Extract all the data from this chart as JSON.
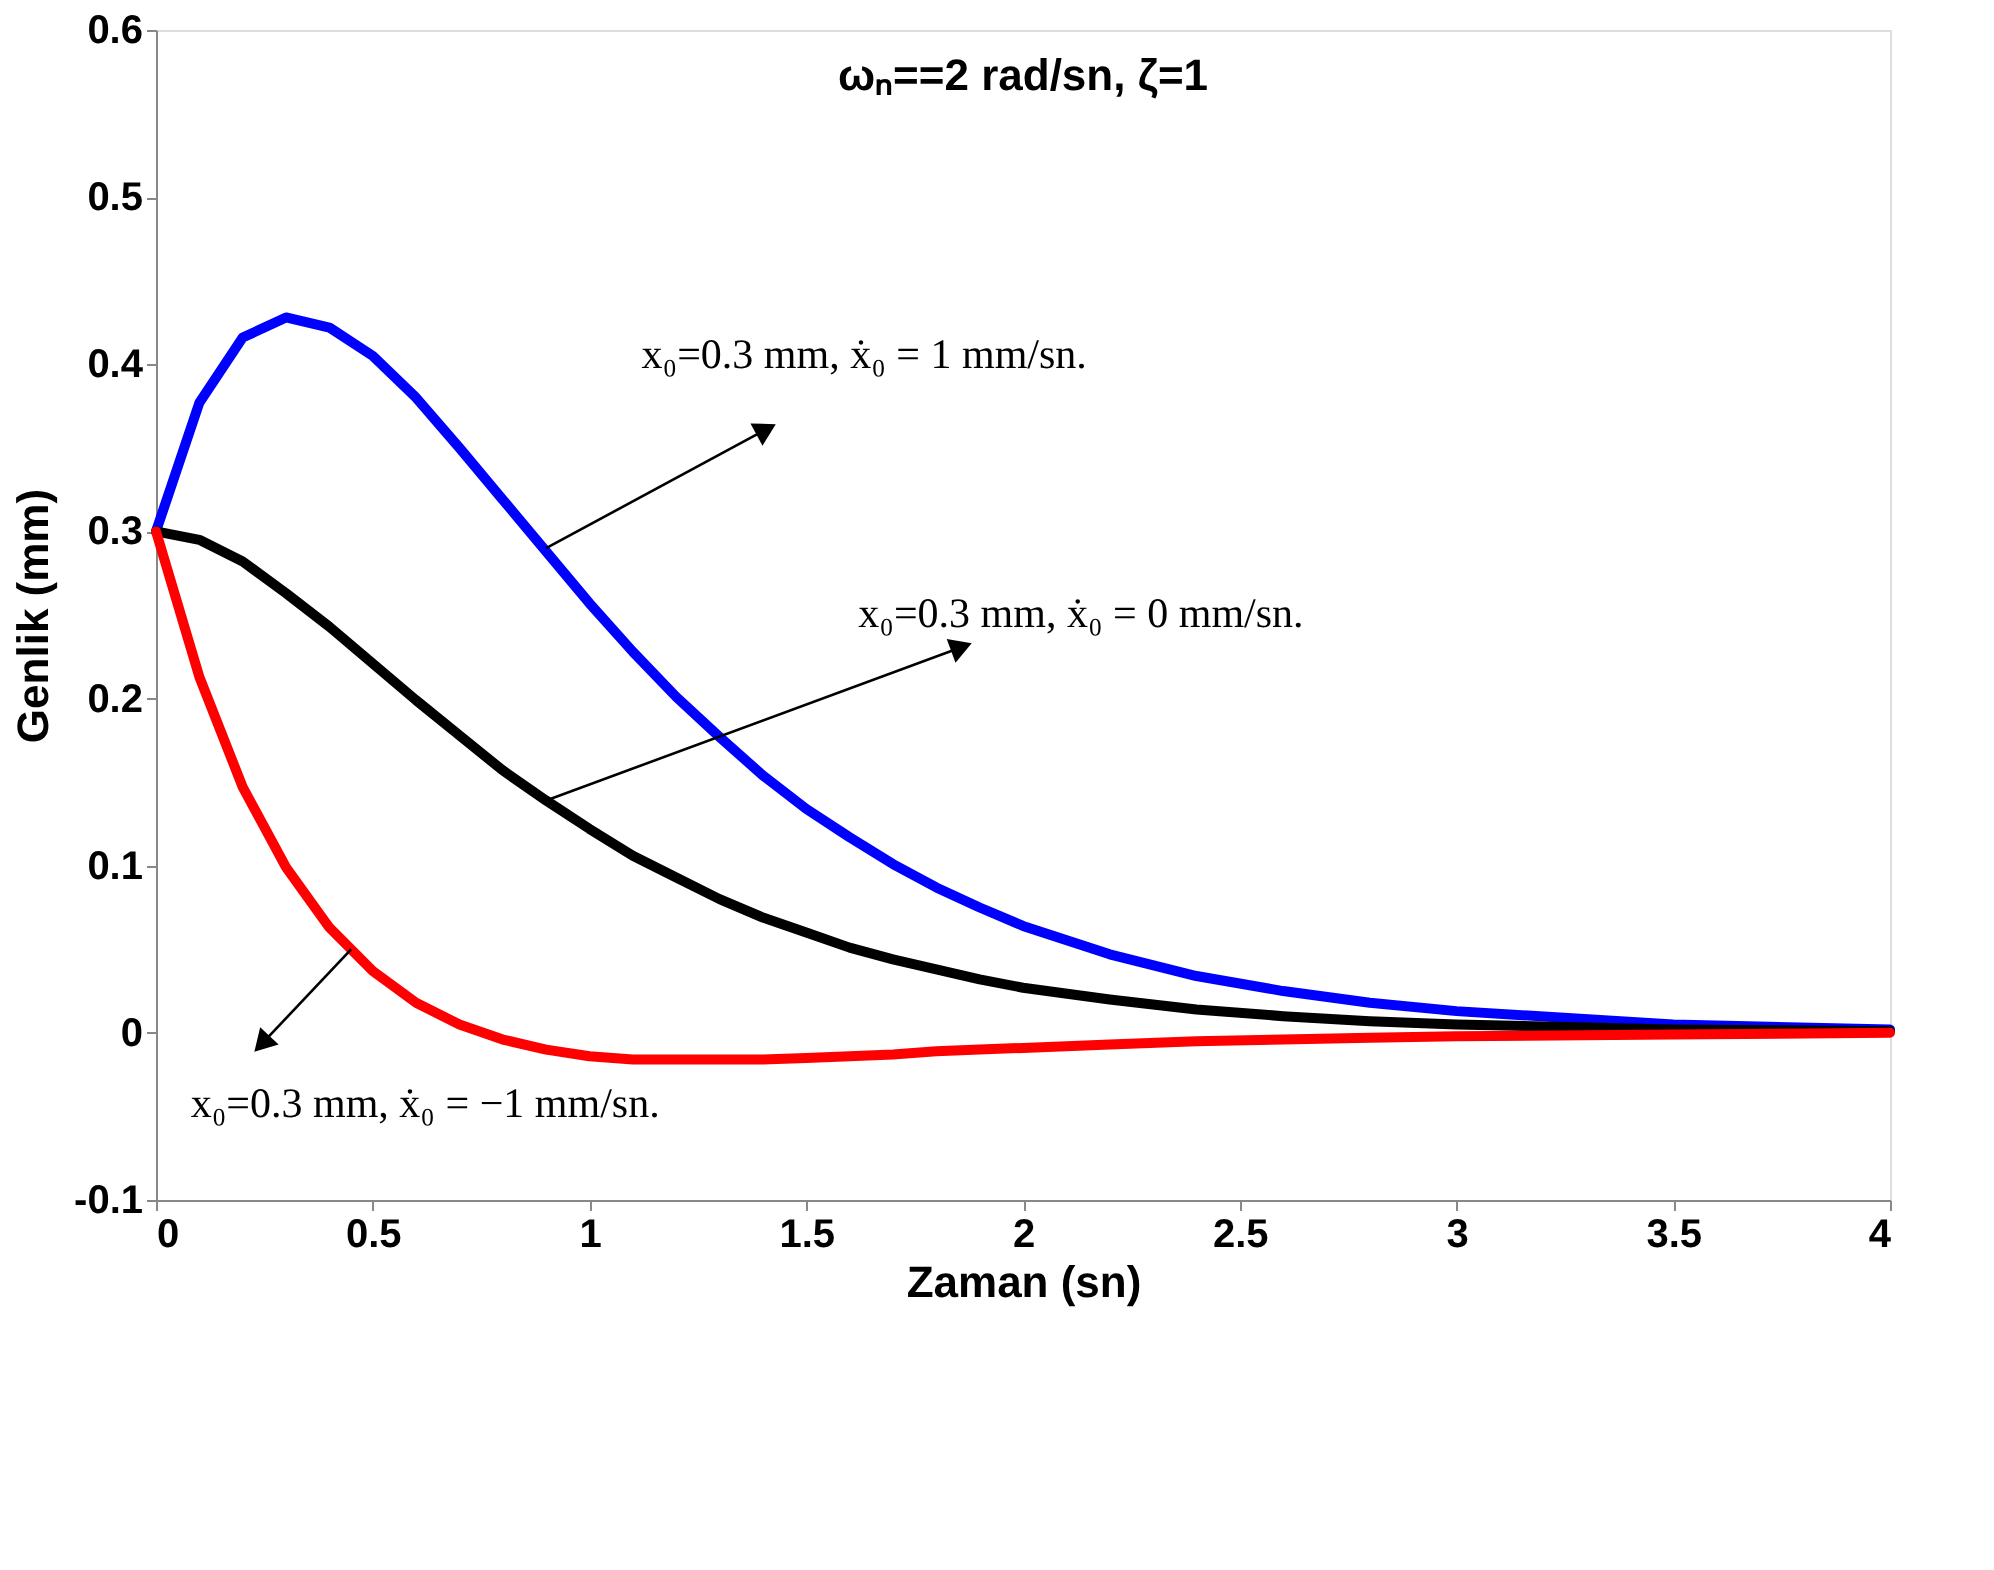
{
  "chart_data": {
    "type": "line",
    "title": "ωₙ==2 rad/sn, ζ=1",
    "xlabel": "Zaman (sn)",
    "ylabel": "Genlik (mm)",
    "x": [
      0,
      0.1,
      0.2,
      0.3,
      0.4,
      0.5,
      0.6,
      0.7,
      0.8,
      0.9,
      1.0,
      1.1,
      1.2,
      1.3,
      1.4,
      1.5,
      1.6,
      1.7,
      1.8,
      1.9,
      2.0,
      2.2,
      2.4,
      2.6,
      2.8,
      3.0,
      3.5,
      4.0
    ],
    "series": [
      {
        "color": "#0000ff",
        "values": [
          0.3,
          0.377,
          0.416,
          0.428,
          0.422,
          0.405,
          0.38,
          0.35,
          0.319,
          0.288,
          0.257,
          0.228,
          0.201,
          0.177,
          0.154,
          0.134,
          0.117,
          0.101,
          0.087,
          0.075,
          0.064,
          0.047,
          0.034,
          0.025,
          0.018,
          0.013,
          0.005,
          0.002
        ]
      },
      {
        "color": "#000000",
        "values": [
          0.3,
          0.295,
          0.282,
          0.263,
          0.243,
          0.221,
          0.199,
          0.178,
          0.157,
          0.139,
          0.122,
          0.106,
          0.093,
          0.08,
          0.069,
          0.06,
          0.051,
          0.044,
          0.038,
          0.032,
          0.027,
          0.02,
          0.014,
          0.01,
          0.007,
          0.005,
          0.002,
          0.001
        ]
      },
      {
        "color": "#ff0000",
        "values": [
          0.3,
          0.213,
          0.147,
          0.099,
          0.063,
          0.037,
          0.018,
          0.005,
          -0.004,
          -0.01,
          -0.014,
          -0.016,
          -0.016,
          -0.016,
          -0.016,
          -0.015,
          -0.014,
          -0.013,
          -0.011,
          -0.01,
          -0.009,
          -0.007,
          -0.005,
          -0.004,
          -0.003,
          -0.002,
          -0.001,
          0.0
        ]
      }
    ],
    "annotations": [
      "x₀=0.3 mm,  ẋ₀ = 1 mm/sn.",
      "x₀=0.3 mm,  ẋ₀ = 0 mm/sn.",
      "x₀=0.3 mm,  ẋ₀ = −1 mm/sn."
    ],
    "xlim": [
      0,
      4
    ],
    "xticks": [
      0,
      0.5,
      1,
      1.5,
      2,
      2.5,
      3,
      3.5,
      4
    ],
    "ylim": [
      -0.1,
      0.6
    ],
    "yticks": [
      -0.1,
      0,
      0.1,
      0.2,
      0.3,
      0.4,
      0.5,
      0.6
    ],
    "grid": false,
    "legend": false,
    "line_style": "solid",
    "marker": "none"
  }
}
